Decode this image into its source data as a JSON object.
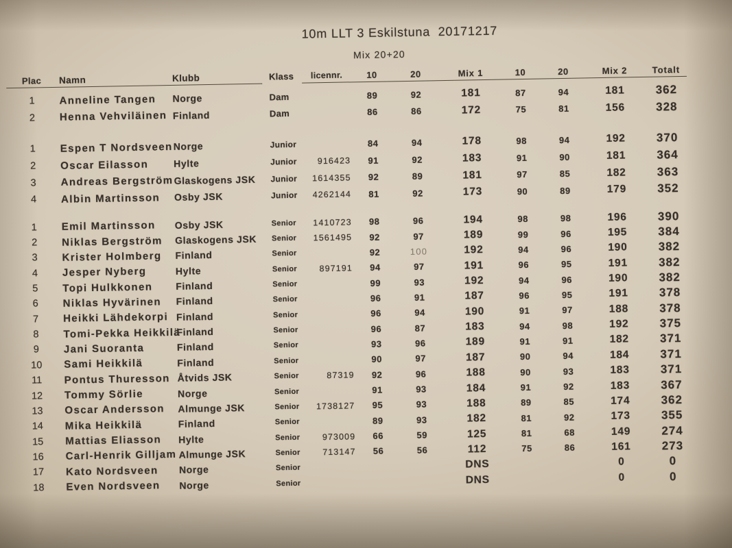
{
  "title": "10m LLT 3 Eskilstuna  20171217",
  "subtitle": "Mix 20+20",
  "table": {
    "columns": [
      "Plac",
      "Namn",
      "Klubb",
      "Klass",
      "licennr.",
      "10",
      "20",
      "Mix 1",
      "10",
      "20",
      "Mix 2",
      "Totalt"
    ],
    "groups": [
      {
        "klass": "Dam",
        "rows": [
          {
            "plac": "1",
            "namn": "Anneline Tangen",
            "klubb": "Norge",
            "klass": "Dam",
            "licennr": "",
            "s10a": "89",
            "s20a": "92",
            "mix1": "181",
            "s10b": "87",
            "s20b": "94",
            "mix2": "181",
            "totalt": "362"
          },
          {
            "plac": "2",
            "namn": "Henna Vehviläinen",
            "klubb": "Finland",
            "klass": "Dam",
            "licennr": "",
            "s10a": "86",
            "s20a": "86",
            "mix1": "172",
            "s10b": "75",
            "s20b": "81",
            "mix2": "156",
            "totalt": "328"
          }
        ]
      },
      {
        "klass": "Junior",
        "rows": [
          {
            "plac": "1",
            "namn": "Espen T Nordsveen",
            "klubb": "Norge",
            "klass": "Junior",
            "licennr": "",
            "s10a": "84",
            "s20a": "94",
            "mix1": "178",
            "s10b": "98",
            "s20b": "94",
            "mix2": "192",
            "totalt": "370"
          },
          {
            "plac": "2",
            "namn": "Oscar Eilasson",
            "klubb": "Hylte",
            "klass": "Junior",
            "licennr": "916423",
            "s10a": "91",
            "s20a": "92",
            "mix1": "183",
            "s10b": "91",
            "s20b": "90",
            "mix2": "181",
            "totalt": "364"
          },
          {
            "plac": "3",
            "namn": "Andreas Bergström",
            "klubb": "Glaskogens JSK",
            "klass": "Junior",
            "licennr": "1614355",
            "s10a": "92",
            "s20a": "89",
            "mix1": "181",
            "s10b": "97",
            "s20b": "85",
            "mix2": "182",
            "totalt": "363"
          },
          {
            "plac": "4",
            "namn": "Albin Martinsson",
            "klubb": "Osby JSK",
            "klass": "Junior",
            "licennr": "4262144",
            "s10a": "81",
            "s20a": "92",
            "mix1": "173",
            "s10b": "90",
            "s20b": "89",
            "mix2": "179",
            "totalt": "352"
          }
        ]
      },
      {
        "klass": "Senior",
        "rows": [
          {
            "plac": "1",
            "namn": "Emil Martinsson",
            "klubb": "Osby JSK",
            "klass": "Senior",
            "licennr": "1410723",
            "s10a": "98",
            "s20a": "96",
            "mix1": "194",
            "s10b": "98",
            "s20b": "98",
            "mix2": "196",
            "totalt": "390"
          },
          {
            "plac": "2",
            "namn": "Niklas Bergström",
            "klubb": "Glaskogens JSK",
            "klass": "Senior",
            "licennr": "1561495",
            "s10a": "92",
            "s20a": "97",
            "mix1": "189",
            "s10b": "99",
            "s20b": "96",
            "mix2": "195",
            "totalt": "384"
          },
          {
            "plac": "3",
            "namn": "Krister Holmberg",
            "klubb": "Finland",
            "klass": "Senior",
            "licennr": "",
            "s10a": "92",
            "s20a": "100",
            "mix1": "192",
            "s10b": "94",
            "s20b": "96",
            "mix2": "190",
            "totalt": "382",
            "faded": [
              "s20a"
            ]
          },
          {
            "plac": "4",
            "namn": "Jesper Nyberg",
            "klubb": "Hylte",
            "klass": "Senior",
            "licennr": "897191",
            "s10a": "94",
            "s20a": "97",
            "mix1": "191",
            "s10b": "96",
            "s20b": "95",
            "mix2": "191",
            "totalt": "382"
          },
          {
            "plac": "5",
            "namn": "Topi Hulkkonen",
            "klubb": "Finland",
            "klass": "Senior",
            "licennr": "",
            "s10a": "99",
            "s20a": "93",
            "mix1": "192",
            "s10b": "94",
            "s20b": "96",
            "mix2": "190",
            "totalt": "382"
          },
          {
            "plac": "6",
            "namn": "Niklas Hyvärinen",
            "klubb": "Finland",
            "klass": "Senior",
            "licennr": "",
            "s10a": "96",
            "s20a": "91",
            "mix1": "187",
            "s10b": "96",
            "s20b": "95",
            "mix2": "191",
            "totalt": "378"
          },
          {
            "plac": "7",
            "namn": "Heikki Lähdekorpi",
            "klubb": "Finland",
            "klass": "Senior",
            "licennr": "",
            "s10a": "96",
            "s20a": "94",
            "mix1": "190",
            "s10b": "91",
            "s20b": "97",
            "mix2": "188",
            "totalt": "378"
          },
          {
            "plac": "8",
            "namn": "Tomi-Pekka Heikkilä",
            "klubb": "Finland",
            "klass": "Senior",
            "licennr": "",
            "s10a": "96",
            "s20a": "87",
            "mix1": "183",
            "s10b": "94",
            "s20b": "98",
            "mix2": "192",
            "totalt": "375"
          },
          {
            "plac": "9",
            "namn": "Jani Suoranta",
            "klubb": "Finland",
            "klass": "Senior",
            "licennr": "",
            "s10a": "93",
            "s20a": "96",
            "mix1": "189",
            "s10b": "91",
            "s20b": "91",
            "mix2": "182",
            "totalt": "371"
          },
          {
            "plac": "10",
            "namn": "Sami Heikkilä",
            "klubb": "Finland",
            "klass": "Senior",
            "licennr": "",
            "s10a": "90",
            "s20a": "97",
            "mix1": "187",
            "s10b": "90",
            "s20b": "94",
            "mix2": "184",
            "totalt": "371"
          },
          {
            "plac": "11",
            "namn": "Pontus Thuresson",
            "klubb": "Åtvids JSK",
            "klass": "Senior",
            "licennr": "87319",
            "s10a": "92",
            "s20a": "96",
            "mix1": "188",
            "s10b": "90",
            "s20b": "93",
            "mix2": "183",
            "totalt": "371"
          },
          {
            "plac": "12",
            "namn": "Tommy Sörlie",
            "klubb": "Norge",
            "klass": "Senior",
            "licennr": "",
            "s10a": "91",
            "s20a": "93",
            "mix1": "184",
            "s10b": "91",
            "s20b": "92",
            "mix2": "183",
            "totalt": "367"
          },
          {
            "plac": "13",
            "namn": "Oscar Andersson",
            "klubb": "Almunge JSK",
            "klass": "Senior",
            "licennr": "1738127",
            "s10a": "95",
            "s20a": "93",
            "mix1": "188",
            "s10b": "89",
            "s20b": "85",
            "mix2": "174",
            "totalt": "362"
          },
          {
            "plac": "14",
            "namn": "Mika Heikkilä",
            "klubb": "Finland",
            "klass": "Senior",
            "licennr": "",
            "s10a": "89",
            "s20a": "93",
            "mix1": "182",
            "s10b": "81",
            "s20b": "92",
            "mix2": "173",
            "totalt": "355"
          },
          {
            "plac": "15",
            "namn": "Mattias Eliasson",
            "klubb": "Hylte",
            "klass": "Senior",
            "licennr": "973009",
            "s10a": "66",
            "s20a": "59",
            "mix1": "125",
            "s10b": "81",
            "s20b": "68",
            "mix2": "149",
            "totalt": "274"
          },
          {
            "plac": "16",
            "namn": "Carl-Henrik Gilljam",
            "klubb": "Almunge JSK",
            "klass": "Senior",
            "licennr": "713147",
            "s10a": "56",
            "s20a": "56",
            "mix1": "112",
            "s10b": "75",
            "s20b": "86",
            "mix2": "161",
            "totalt": "273"
          },
          {
            "plac": "17",
            "namn": "Kato Nordsveen",
            "klubb": "Norge",
            "klass": "Senior",
            "licennr": "",
            "s10a": "",
            "s20a": "",
            "mix1": "DNS",
            "s10b": "",
            "s20b": "",
            "mix2": "0",
            "totalt": "0"
          },
          {
            "plac": "18",
            "namn": "Even Nordsveen",
            "klubb": "Norge",
            "klass": "Senior",
            "licennr": "",
            "s10a": "",
            "s20a": "",
            "mix1": "DNS",
            "s10b": "",
            "s20b": "",
            "mix2": "0",
            "totalt": "0"
          }
        ]
      }
    ]
  }
}
